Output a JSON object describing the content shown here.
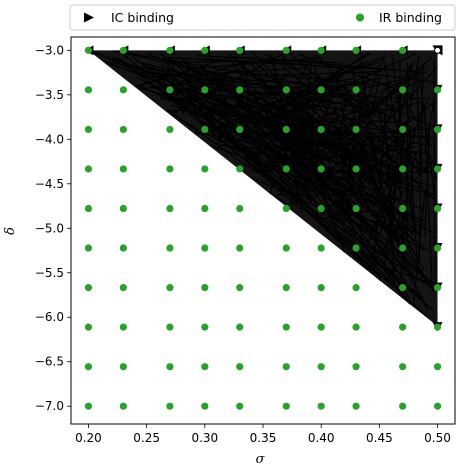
{
  "chart_data": {
    "type": "scatter",
    "xlabel": "σ",
    "ylabel": "δ",
    "xlim": [
      0.185,
      0.515
    ],
    "ylim": [
      -7.2,
      -2.85
    ],
    "x_ticks": [
      {
        "value": 0.2,
        "label": "0.20"
      },
      {
        "value": 0.25,
        "label": "0.25"
      },
      {
        "value": 0.3,
        "label": "0.30"
      },
      {
        "value": 0.35,
        "label": "0.35"
      },
      {
        "value": 0.4,
        "label": "0.40"
      },
      {
        "value": 0.45,
        "label": "0.45"
      },
      {
        "value": 0.5,
        "label": "0.50"
      }
    ],
    "y_ticks": [
      {
        "value": -3.0,
        "label": "−3.0"
      },
      {
        "value": -3.5,
        "label": "−3.5"
      },
      {
        "value": -4.0,
        "label": "−4.0"
      },
      {
        "value": -4.5,
        "label": "−4.5"
      },
      {
        "value": -5.0,
        "label": "−5.0"
      },
      {
        "value": -5.5,
        "label": "−5.5"
      },
      {
        "value": -6.0,
        "label": "−6.0"
      },
      {
        "value": -6.5,
        "label": "−6.5"
      },
      {
        "value": -7.0,
        "label": "−7.0"
      }
    ],
    "legend_position": "top, above axes",
    "grid": false,
    "series": [
      {
        "name": "IC binding",
        "marker": "triangle",
        "color": "#000000",
        "description": "dense field of black arrow paths in the upper-right triangle bounded by (0.20,-3.0), (0.50,-3.0), (0.50,-6.1)",
        "region_vertices": [
          [
            0.2,
            -3.0
          ],
          [
            0.5,
            -3.0
          ],
          [
            0.5,
            -6.1
          ]
        ]
      },
      {
        "name": "IR binding",
        "marker": "circle",
        "color": "#2ca02c",
        "x_grid": [
          0.2,
          0.23,
          0.27,
          0.3,
          0.33,
          0.37,
          0.4,
          0.43,
          0.47,
          0.5
        ],
        "y_grid": [
          -3.0,
          -3.444,
          -3.889,
          -4.333,
          -4.778,
          -5.222,
          -5.667,
          -6.111,
          -6.556,
          -7.0
        ]
      }
    ]
  }
}
